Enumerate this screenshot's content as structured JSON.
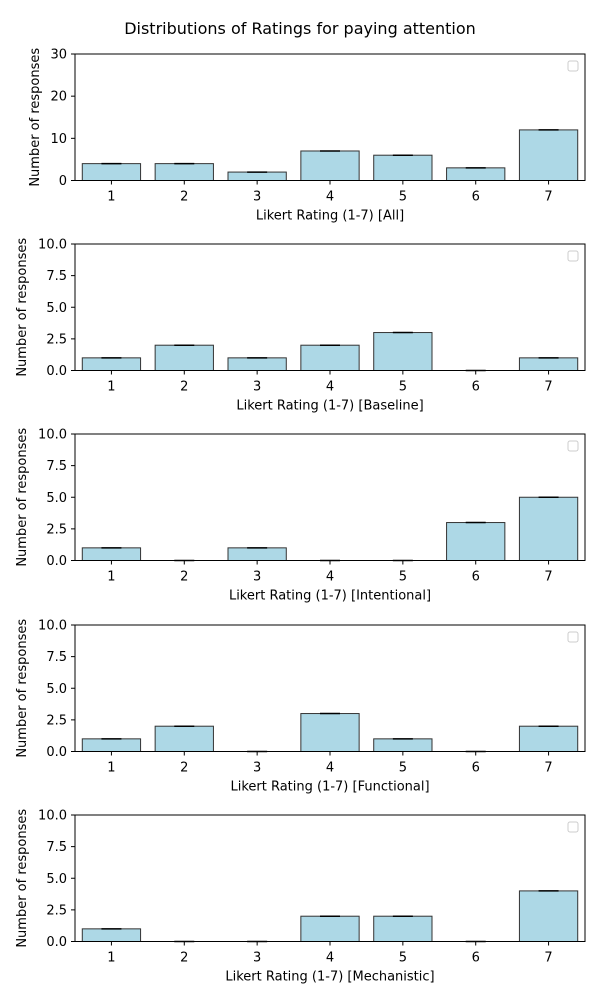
{
  "figure": {
    "title": "Distributions of Ratings for paying attention"
  },
  "colors": {
    "bar_fill": "#add8e6",
    "bar_edge": "#333333",
    "errorbar": "#000000",
    "axis": "#000000"
  },
  "chart_data": [
    {
      "type": "bar",
      "categories": [
        "1",
        "2",
        "3",
        "4",
        "5",
        "6",
        "7"
      ],
      "values": [
        4,
        4,
        2,
        7,
        6,
        3,
        12
      ],
      "xlabel": "Likert Rating (1-7) [All]",
      "ylabel": "Number of responses",
      "ylim": [
        0,
        30
      ],
      "yticks": [
        "0",
        "10",
        "20",
        "30"
      ],
      "legend": "upper-right (empty)",
      "grid": false
    },
    {
      "type": "bar",
      "categories": [
        "1",
        "2",
        "3",
        "4",
        "5",
        "6",
        "7"
      ],
      "values": [
        1,
        2,
        1,
        2,
        3,
        0,
        1
      ],
      "xlabel": "Likert Rating (1-7) [Baseline]",
      "ylabel": "Number of responses",
      "ylim": [
        0,
        10
      ],
      "yticks": [
        "0.0",
        "2.5",
        "5.0",
        "7.5",
        "10.0"
      ],
      "legend": "upper-right (empty)",
      "grid": false
    },
    {
      "type": "bar",
      "categories": [
        "1",
        "2",
        "3",
        "4",
        "5",
        "6",
        "7"
      ],
      "values": [
        1,
        0,
        1,
        0,
        0,
        3,
        5
      ],
      "xlabel": "Likert Rating (1-7) [Intentional]",
      "ylabel": "Number of responses",
      "ylim": [
        0,
        10
      ],
      "yticks": [
        "0.0",
        "2.5",
        "5.0",
        "7.5",
        "10.0"
      ],
      "legend": "upper-right (empty)",
      "grid": false
    },
    {
      "type": "bar",
      "categories": [
        "1",
        "2",
        "3",
        "4",
        "5",
        "6",
        "7"
      ],
      "values": [
        1,
        2,
        0,
        3,
        1,
        0,
        2
      ],
      "xlabel": "Likert Rating (1-7) [Functional]",
      "ylabel": "Number of responses",
      "ylim": [
        0,
        10
      ],
      "yticks": [
        "0.0",
        "2.5",
        "5.0",
        "7.5",
        "10.0"
      ],
      "legend": "upper-right (empty)",
      "grid": false
    },
    {
      "type": "bar",
      "categories": [
        "1",
        "2",
        "3",
        "4",
        "5",
        "6",
        "7"
      ],
      "values": [
        1,
        0,
        0,
        2,
        2,
        0,
        4
      ],
      "xlabel": "Likert Rating (1-7) [Mechanistic]",
      "ylabel": "Number of responses",
      "ylim": [
        0,
        10
      ],
      "yticks": [
        "0.0",
        "2.5",
        "5.0",
        "7.5",
        "10.0"
      ],
      "legend": "upper-right (empty)",
      "grid": false
    }
  ]
}
